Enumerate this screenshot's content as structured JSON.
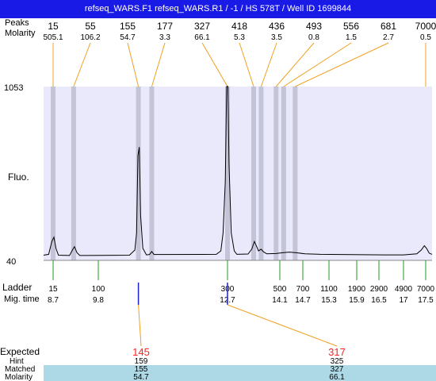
{
  "window": {
    "title": "refseq_WARS.F1  refseq_WARS.R1 / -1 / HS 578T / Well ID 1699844"
  },
  "labels": {
    "peak_row_label": "Peaks",
    "molarity_label": "Molarity",
    "fluo_label": "Fluo.",
    "ladder_label": "Ladder",
    "migtime_label": "Mig. time",
    "expected_label": "Expected",
    "hint_label": "Hint",
    "matched_label": "Matched",
    "bottom_molarity_label": "Molarity"
  },
  "colors": {
    "title_bg": "#1a1ae6",
    "plot_bg": "#e9e9fb",
    "band": "#c4c4d8",
    "connector": "#f0a020",
    "ladder_tick": "#229922",
    "expected_text": "#ff2020",
    "matched_band": "#add8e6",
    "trace": "#000000"
  },
  "chart_data": {
    "type": "line",
    "ylabel": "Fluo.",
    "ylim": [
      40,
      1053
    ],
    "y_ticks": [
      "1053",
      "40"
    ],
    "peaks": [
      {
        "size": "15",
        "molarity": "505.1",
        "x": 8.7
      },
      {
        "size": "55",
        "molarity": "106.2",
        "x": 9.2
      },
      {
        "size": "155",
        "molarity": "54.7",
        "x": 10.7
      },
      {
        "size": "177",
        "molarity": "3.3",
        "x": 11.0
      },
      {
        "size": "327",
        "molarity": "66.1",
        "x": 12.7
      },
      {
        "size": "418",
        "molarity": "5.3",
        "x": 13.4
      },
      {
        "size": "436",
        "molarity": "3.5",
        "x": 13.6
      },
      {
        "size": "493",
        "molarity": "0.8",
        "x": 14.0
      },
      {
        "size": "556",
        "molarity": "1.5",
        "x": 14.2
      },
      {
        "size": "681",
        "molarity": "2.7",
        "x": 14.5
      },
      {
        "size": "7000",
        "molarity": "0.5",
        "x": 17.5
      }
    ],
    "ladder": [
      {
        "size": "15",
        "time": "8.7",
        "t": 8.7
      },
      {
        "size": "100",
        "time": "9.8",
        "t": 9.8
      },
      {
        "size": "300",
        "time": "12.7",
        "t": 12.7
      },
      {
        "size": "500",
        "time": "14.1",
        "t": 14.1
      },
      {
        "size": "700",
        "time": "14.7",
        "t": 14.7
      },
      {
        "size": "1100",
        "time": "15.3",
        "t": 15.3
      },
      {
        "size": "1900",
        "time": "15.9",
        "t": 15.9
      },
      {
        "size": "2900",
        "time": "16.5",
        "t": 16.5
      },
      {
        "size": "4900",
        "time": "17",
        "t": 17.0
      },
      {
        "size": "7000",
        "time": "17.5",
        "t": 17.5
      }
    ],
    "trace": [
      [
        8.55,
        70
      ],
      [
        8.63,
        75
      ],
      [
        8.68,
        150
      ],
      [
        8.72,
        175
      ],
      [
        8.77,
        110
      ],
      [
        8.83,
        70
      ],
      [
        9.1,
        68
      ],
      [
        9.17,
        100
      ],
      [
        9.22,
        120
      ],
      [
        9.28,
        85
      ],
      [
        9.35,
        68
      ],
      [
        10.5,
        70
      ],
      [
        10.62,
        100
      ],
      [
        10.66,
        200
      ],
      [
        10.69,
        650
      ],
      [
        10.72,
        700
      ],
      [
        10.75,
        300
      ],
      [
        10.8,
        110
      ],
      [
        10.88,
        72
      ],
      [
        10.95,
        74
      ],
      [
        11.0,
        92
      ],
      [
        11.05,
        74
      ],
      [
        12.45,
        75
      ],
      [
        12.55,
        95
      ],
      [
        12.6,
        200
      ],
      [
        12.65,
        500
      ],
      [
        12.68,
        1060
      ],
      [
        12.71,
        1060
      ],
      [
        12.74,
        600
      ],
      [
        12.8,
        200
      ],
      [
        12.88,
        95
      ],
      [
        12.95,
        75
      ],
      [
        13.25,
        77
      ],
      [
        13.35,
        105
      ],
      [
        13.42,
        150
      ],
      [
        13.48,
        120
      ],
      [
        13.53,
        95
      ],
      [
        13.6,
        105
      ],
      [
        13.66,
        90
      ],
      [
        13.75,
        78
      ],
      [
        14.0,
        80
      ],
      [
        14.15,
        84
      ],
      [
        14.35,
        88
      ],
      [
        14.55,
        84
      ],
      [
        14.75,
        78
      ],
      [
        15.1,
        75
      ],
      [
        16.6,
        72
      ],
      [
        17.0,
        72
      ],
      [
        17.3,
        78
      ],
      [
        17.4,
        100
      ],
      [
        17.47,
        125
      ],
      [
        17.53,
        110
      ],
      [
        17.62,
        82
      ],
      [
        17.72,
        75
      ]
    ],
    "expected": [
      {
        "expected": "145",
        "hint": "159",
        "matched": "155",
        "molarity": "54.7",
        "peak_index": 2
      },
      {
        "expected": "317",
        "hint": "325",
        "matched": "327",
        "molarity": "66.1",
        "peak_index": 4
      }
    ]
  }
}
